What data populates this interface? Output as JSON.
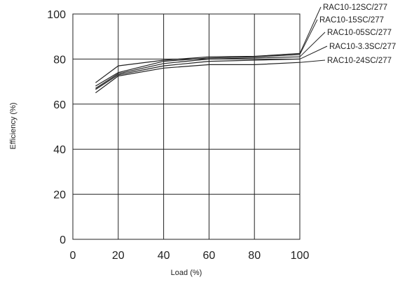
{
  "chart_data": {
    "type": "line",
    "title": "",
    "xlabel": "Load (%)",
    "ylabel": "Efficiency (%)",
    "xlim": [
      0,
      100
    ],
    "ylim": [
      0,
      100
    ],
    "xticks": [
      0,
      20,
      40,
      60,
      80,
      100
    ],
    "yticks": [
      0,
      20,
      40,
      60,
      80,
      100
    ],
    "grid": true,
    "legend": "right (labels with leader lines)",
    "series": [
      {
        "name": "RAC10-12SC/277",
        "x": [
          10,
          20,
          40,
          60,
          80,
          100
        ],
        "y": [
          69.5,
          77,
          79.5,
          81,
          81.2,
          82.5
        ]
      },
      {
        "name": "RAC10-15SC/277",
        "x": [
          10,
          20,
          40,
          60,
          80,
          100
        ],
        "y": [
          68,
          74,
          79,
          80.5,
          81,
          82
        ]
      },
      {
        "name": "RAC10-05SC/277",
        "x": [
          10,
          20,
          40,
          60,
          80,
          100
        ],
        "y": [
          67,
          73.5,
          78,
          80,
          80.5,
          81
        ]
      },
      {
        "name": "RAC10-3.3SC/277",
        "x": [
          10,
          20,
          40,
          60,
          80,
          100
        ],
        "y": [
          66.5,
          73,
          77,
          79,
          79.5,
          80
        ]
      },
      {
        "name": "RAC10-24SC/277",
        "x": [
          10,
          20,
          40,
          60,
          80,
          100
        ],
        "y": [
          65,
          72.5,
          76,
          77.5,
          77.5,
          78.5
        ]
      }
    ]
  }
}
